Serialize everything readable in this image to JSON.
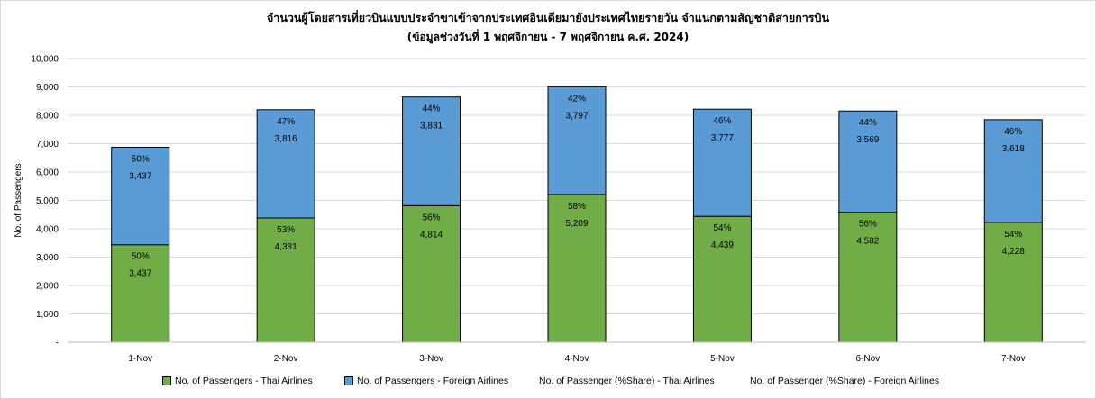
{
  "chart_data": {
    "type": "bar",
    "stacked": true,
    "title": "จำนวนผู้โดยสารเที่ยวบินแบบประจำขาเข้าจากประเทศอินเดียมายังประเทศไทยรายวัน จำแนกตามสัญชาติสายการบิน",
    "subtitle": "(ข้อมูลช่วงวันที่ 1 พฤศจิกายน - 7 พฤศจิกายน ค.ศ. 2024)",
    "ylabel": "No. of Passengers",
    "xlabel": "",
    "ylim": [
      0,
      10000
    ],
    "yticks": [
      0,
      1000,
      2000,
      3000,
      4000,
      5000,
      6000,
      7000,
      8000,
      9000,
      10000
    ],
    "ytick_labels": [
      "-",
      "1,000",
      "2,000",
      "3,000",
      "4,000",
      "5,000",
      "6,000",
      "7,000",
      "8,000",
      "9,000",
      "10,000"
    ],
    "grid": true,
    "legend_position": "bottom",
    "categories": [
      "1-Nov",
      "2-Nov",
      "3-Nov",
      "4-Nov",
      "5-Nov",
      "6-Nov",
      "7-Nov"
    ],
    "series": [
      {
        "name": "No. of Passengers - Thai Airlines",
        "color": "#70ad47",
        "values": [
          3437,
          4381,
          4814,
          5209,
          4439,
          4582,
          4228
        ],
        "value_labels": [
          "3,437",
          "4,381",
          "4,814",
          "5,209",
          "4,439",
          "4,582",
          "4,228"
        ],
        "share_labels": [
          "50%",
          "53%",
          "56%",
          "58%",
          "54%",
          "56%",
          "54%"
        ]
      },
      {
        "name": "No. of Passengers - Foreign Airlines",
        "color": "#5b9bd5",
        "values": [
          3437,
          3816,
          3831,
          3797,
          3777,
          3569,
          3618
        ],
        "value_labels": [
          "3,437",
          "3,816",
          "3,831",
          "3,797",
          "3,777",
          "3,569",
          "3,618"
        ],
        "share_labels": [
          "50%",
          "47%",
          "44%",
          "42%",
          "46%",
          "44%",
          "46%"
        ]
      }
    ],
    "legend": [
      {
        "label": "No. of Passengers - Thai Airlines",
        "color": "#70ad47",
        "swatch": true
      },
      {
        "label": "No. of Passengers - Foreign Airlines",
        "color": "#5b9bd5",
        "swatch": true
      },
      {
        "label": "No. of Passenger (%Share) - Thai Airlines",
        "color": "",
        "swatch": false
      },
      {
        "label": "No. of Passenger (%Share) - Foreign Airlines",
        "color": "",
        "swatch": false
      }
    ]
  }
}
